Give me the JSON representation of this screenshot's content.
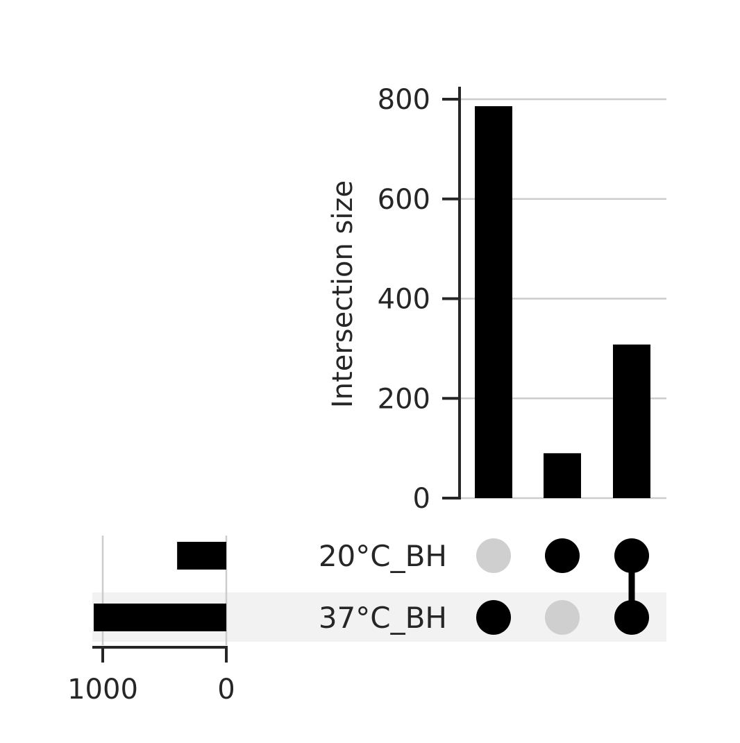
{
  "chart_data": {
    "type": "bar",
    "subtype": "upset",
    "ylabel": "Intersection size",
    "y_ticks": [
      "0",
      "200",
      "400",
      "600",
      "800"
    ],
    "ylim": [
      0,
      820
    ],
    "grid": true,
    "intersections": [
      {
        "members": [
          "37°C_BH"
        ],
        "value": 786
      },
      {
        "members": [
          "20°C_BH"
        ],
        "value": 90
      },
      {
        "members": [
          "20°C_BH",
          "37°C_BH"
        ],
        "value": 308
      }
    ],
    "sets": [
      {
        "name": "20°C_BH",
        "size": 398
      },
      {
        "name": "37°C_BH",
        "size": 1094
      }
    ],
    "set_size_ticks": [
      "1000",
      "0"
    ],
    "set_size_lim": [
      0,
      1000
    ],
    "colors": {
      "bar": "#000000",
      "dot_active": "#000000",
      "dot_inactive": "#cfcfcf",
      "row_shade": "#f2f2f2",
      "grid": "#cccccc",
      "axis": "#262626"
    }
  }
}
